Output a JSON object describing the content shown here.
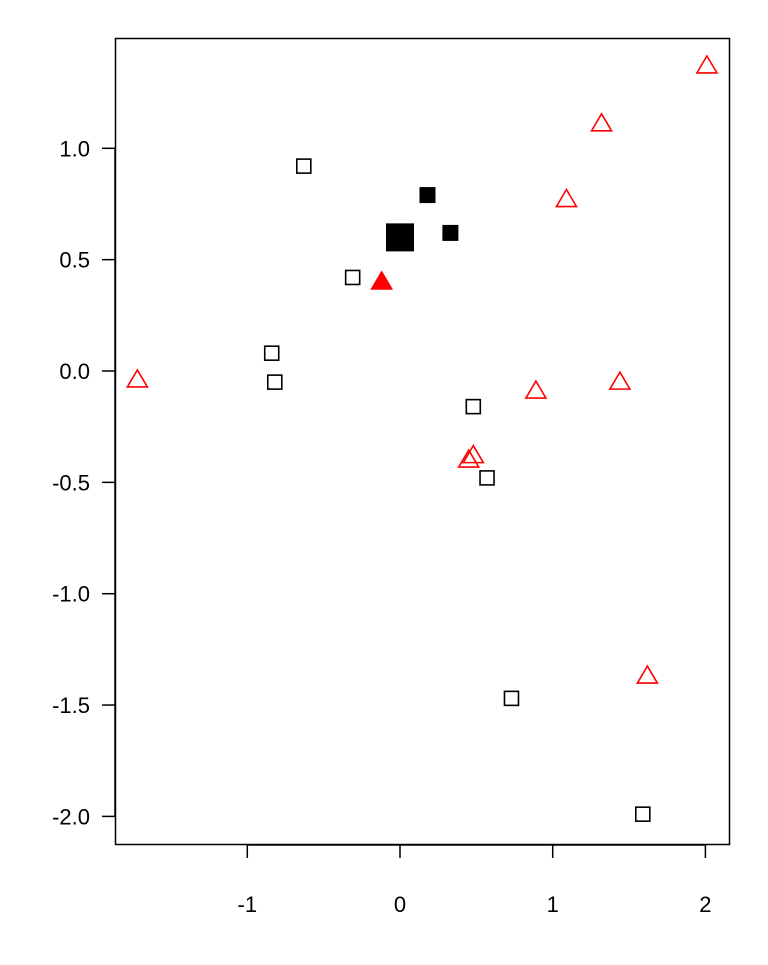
{
  "chart_data": {
    "type": "scatter",
    "title": "",
    "xlabel": "",
    "ylabel": "",
    "xlim": [
      -1.86,
      2.16
    ],
    "ylim": [
      -2.12,
      1.49
    ],
    "x_ticks": [
      -1,
      0,
      1,
      2
    ],
    "x_tick_labels": [
      "-1",
      "0",
      "1",
      "2"
    ],
    "y_ticks": [
      1.0,
      0.5,
      0.0,
      -0.5,
      -1.0,
      -1.5,
      -2.0
    ],
    "y_tick_labels": [
      "1.0",
      "0.5",
      "0.0",
      "-0.5",
      "-1.0",
      "-1.5",
      "-2.0"
    ],
    "grid": false,
    "colors": {
      "squares": "#000000",
      "triangles": "#ff0000"
    },
    "series": [
      {
        "marker": "open-square",
        "color": "#000000",
        "points": [
          [
            -0.63,
            0.92
          ],
          [
            -0.31,
            0.42
          ],
          [
            -0.84,
            0.08
          ],
          [
            -0.82,
            -0.05
          ],
          [
            0.48,
            -0.16
          ],
          [
            0.57,
            -0.48
          ],
          [
            0.73,
            -1.47
          ],
          [
            1.59,
            -1.99
          ]
        ]
      },
      {
        "marker": "filled-square",
        "color": "#000000",
        "points": [
          [
            0.18,
            0.79
          ],
          [
            0.33,
            0.62
          ]
        ]
      },
      {
        "marker": "large-filled-square",
        "color": "#000000",
        "points": [
          [
            0.0,
            0.6
          ]
        ]
      },
      {
        "marker": "open-triangle",
        "color": "#ff0000",
        "points": [
          [
            -1.72,
            -0.04
          ],
          [
            2.01,
            1.37
          ],
          [
            1.32,
            1.11
          ],
          [
            1.09,
            0.77
          ],
          [
            0.89,
            -0.09
          ],
          [
            1.44,
            -0.05
          ],
          [
            0.45,
            -0.4
          ],
          [
            0.48,
            -0.38
          ],
          [
            1.62,
            -1.37
          ]
        ]
      },
      {
        "marker": "filled-triangle",
        "color": "#ff0000",
        "points": [
          [
            -0.12,
            0.4
          ]
        ]
      }
    ]
  }
}
